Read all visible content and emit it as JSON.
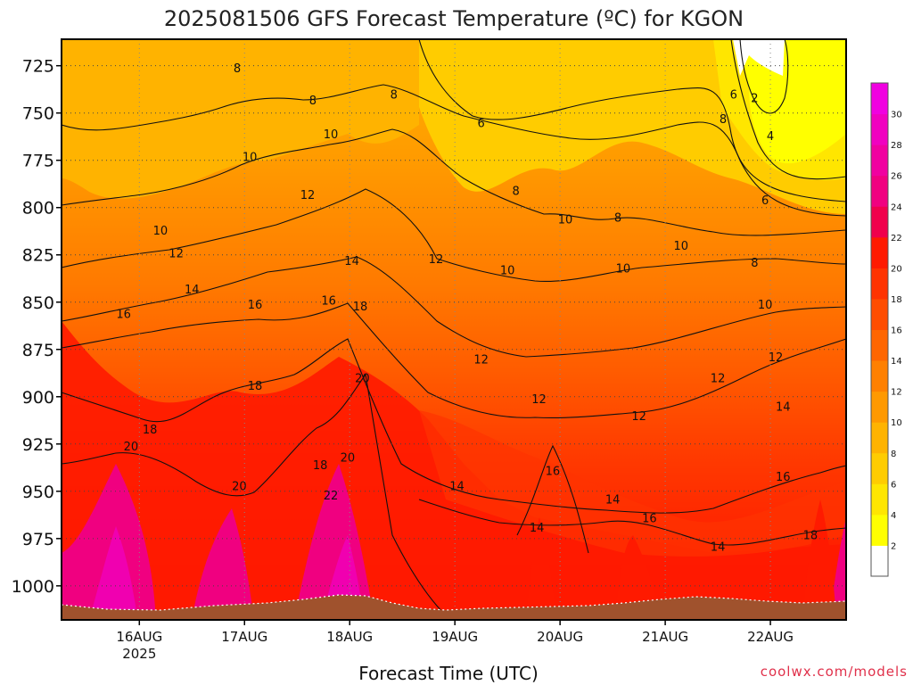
{
  "chart_data": {
    "type": "heatmap",
    "title": "2025081506 GFS Forecast Temperature (ºC) for KGON",
    "xlabel": "Forecast Time (UTC)",
    "ylabel": "",
    "credit": "coolwx.com/models",
    "x_ticks": [
      {
        "label": "16AUG",
        "sub": "2025"
      },
      {
        "label": "17AUG",
        "sub": ""
      },
      {
        "label": "18AUG",
        "sub": ""
      },
      {
        "label": "19AUG",
        "sub": ""
      },
      {
        "label": "20AUG",
        "sub": ""
      },
      {
        "label": "21AUG",
        "sub": ""
      },
      {
        "label": "22AUG",
        "sub": ""
      }
    ],
    "xlim": [
      -0.74,
      6.72
    ],
    "y_ticks": [
      "725",
      "750",
      "775",
      "800",
      "825",
      "850",
      "875",
      "900",
      "925",
      "950",
      "975",
      "1000"
    ],
    "y_tick_values": [
      725,
      750,
      775,
      800,
      825,
      850,
      875,
      900,
      925,
      950,
      975,
      1000
    ],
    "ylim": [
      711,
      1018
    ],
    "y_inverted": true,
    "units": "ºC",
    "colorbar": {
      "levels": [
        0,
        2,
        4,
        6,
        8,
        10,
        12,
        14,
        16,
        18,
        20,
        22,
        24,
        26,
        28,
        30,
        32
      ],
      "labels": [
        "2",
        "4",
        "6",
        "8",
        "10",
        "12",
        "14",
        "16",
        "18",
        "20",
        "22",
        "24",
        "26",
        "28",
        "30"
      ],
      "colors": [
        "#ffffff",
        "#ffff00",
        "#ffe600",
        "#ffcc00",
        "#ffb300",
        "#ff9900",
        "#ff8000",
        "#ff6600",
        "#ff4d00",
        "#ff3300",
        "#ff1a00",
        "#f0004c",
        "#f00080",
        "#f000a0",
        "#f000c0",
        "#f000e0"
      ]
    },
    "contour_labels": [
      {
        "t": 0.2,
        "p": 812,
        "v": "10"
      },
      {
        "t": 0.35,
        "p": 824,
        "v": "12"
      },
      {
        "t": 0.5,
        "p": 843,
        "v": "14"
      },
      {
        "t": -0.15,
        "p": 856,
        "v": "16"
      },
      {
        "t": 0.1,
        "p": 917,
        "v": "18"
      },
      {
        "t": -0.08,
        "p": 926,
        "v": "20"
      },
      {
        "t": 0.93,
        "p": 726,
        "v": "8"
      },
      {
        "t": 1.05,
        "p": 773,
        "v": "10"
      },
      {
        "t": 1.1,
        "p": 851,
        "v": "16"
      },
      {
        "t": 1.1,
        "p": 894,
        "v": "18"
      },
      {
        "t": 0.95,
        "p": 947,
        "v": "20"
      },
      {
        "t": 1.65,
        "p": 743,
        "v": "8"
      },
      {
        "t": 1.82,
        "p": 761,
        "v": "10"
      },
      {
        "t": 1.6,
        "p": 793,
        "v": "12"
      },
      {
        "t": 2.02,
        "p": 828,
        "v": "14"
      },
      {
        "t": 1.8,
        "p": 849,
        "v": "16"
      },
      {
        "t": 2.1,
        "p": 852,
        "v": "18"
      },
      {
        "t": 2.12,
        "p": 890,
        "v": "20"
      },
      {
        "t": 1.98,
        "p": 932,
        "v": "20"
      },
      {
        "t": 1.72,
        "p": 936,
        "v": "18"
      },
      {
        "t": 1.82,
        "p": 952,
        "v": "22"
      },
      {
        "t": 2.42,
        "p": 740,
        "v": "8"
      },
      {
        "t": 2.82,
        "p": 827,
        "v": "12"
      },
      {
        "t": 3.25,
        "p": 755,
        "v": "6"
      },
      {
        "t": 3.58,
        "p": 791,
        "v": "8"
      },
      {
        "t": 3.5,
        "p": 833,
        "v": "10"
      },
      {
        "t": 3.25,
        "p": 880,
        "v": "12"
      },
      {
        "t": 3.02,
        "p": 947,
        "v": "14"
      },
      {
        "t": 3.8,
        "p": 901,
        "v": "12"
      },
      {
        "t": 4.05,
        "p": 806,
        "v": "10"
      },
      {
        "t": 4.55,
        "p": 805,
        "v": "8"
      },
      {
        "t": 4.6,
        "p": 832,
        "v": "10"
      },
      {
        "t": 3.93,
        "p": 939,
        "v": "16"
      },
      {
        "t": 3.78,
        "p": 969,
        "v": "14"
      },
      {
        "t": 4.5,
        "p": 954,
        "v": "14"
      },
      {
        "t": 4.75,
        "p": 910,
        "v": "12"
      },
      {
        "t": 4.85,
        "p": 964,
        "v": "16"
      },
      {
        "t": 5.15,
        "p": 820,
        "v": "10"
      },
      {
        "t": 5.5,
        "p": 890,
        "v": "12"
      },
      {
        "t": 5.65,
        "p": 740,
        "v": "6"
      },
      {
        "t": 5.55,
        "p": 753,
        "v": "8"
      },
      {
        "t": 5.5,
        "p": 979,
        "v": "14"
      },
      {
        "t": 5.85,
        "p": 742,
        "v": "2"
      },
      {
        "t": 6.0,
        "p": 762,
        "v": "4"
      },
      {
        "t": 5.95,
        "p": 796,
        "v": "6"
      },
      {
        "t": 5.85,
        "p": 829,
        "v": "8"
      },
      {
        "t": 5.95,
        "p": 851,
        "v": "10"
      },
      {
        "t": 6.05,
        "p": 879,
        "v": "12"
      },
      {
        "t": 6.12,
        "p": 905,
        "v": "14"
      },
      {
        "t": 6.12,
        "p": 942,
        "v": "16"
      },
      {
        "t": 6.38,
        "p": 973,
        "v": "18"
      }
    ],
    "grid": true
  }
}
